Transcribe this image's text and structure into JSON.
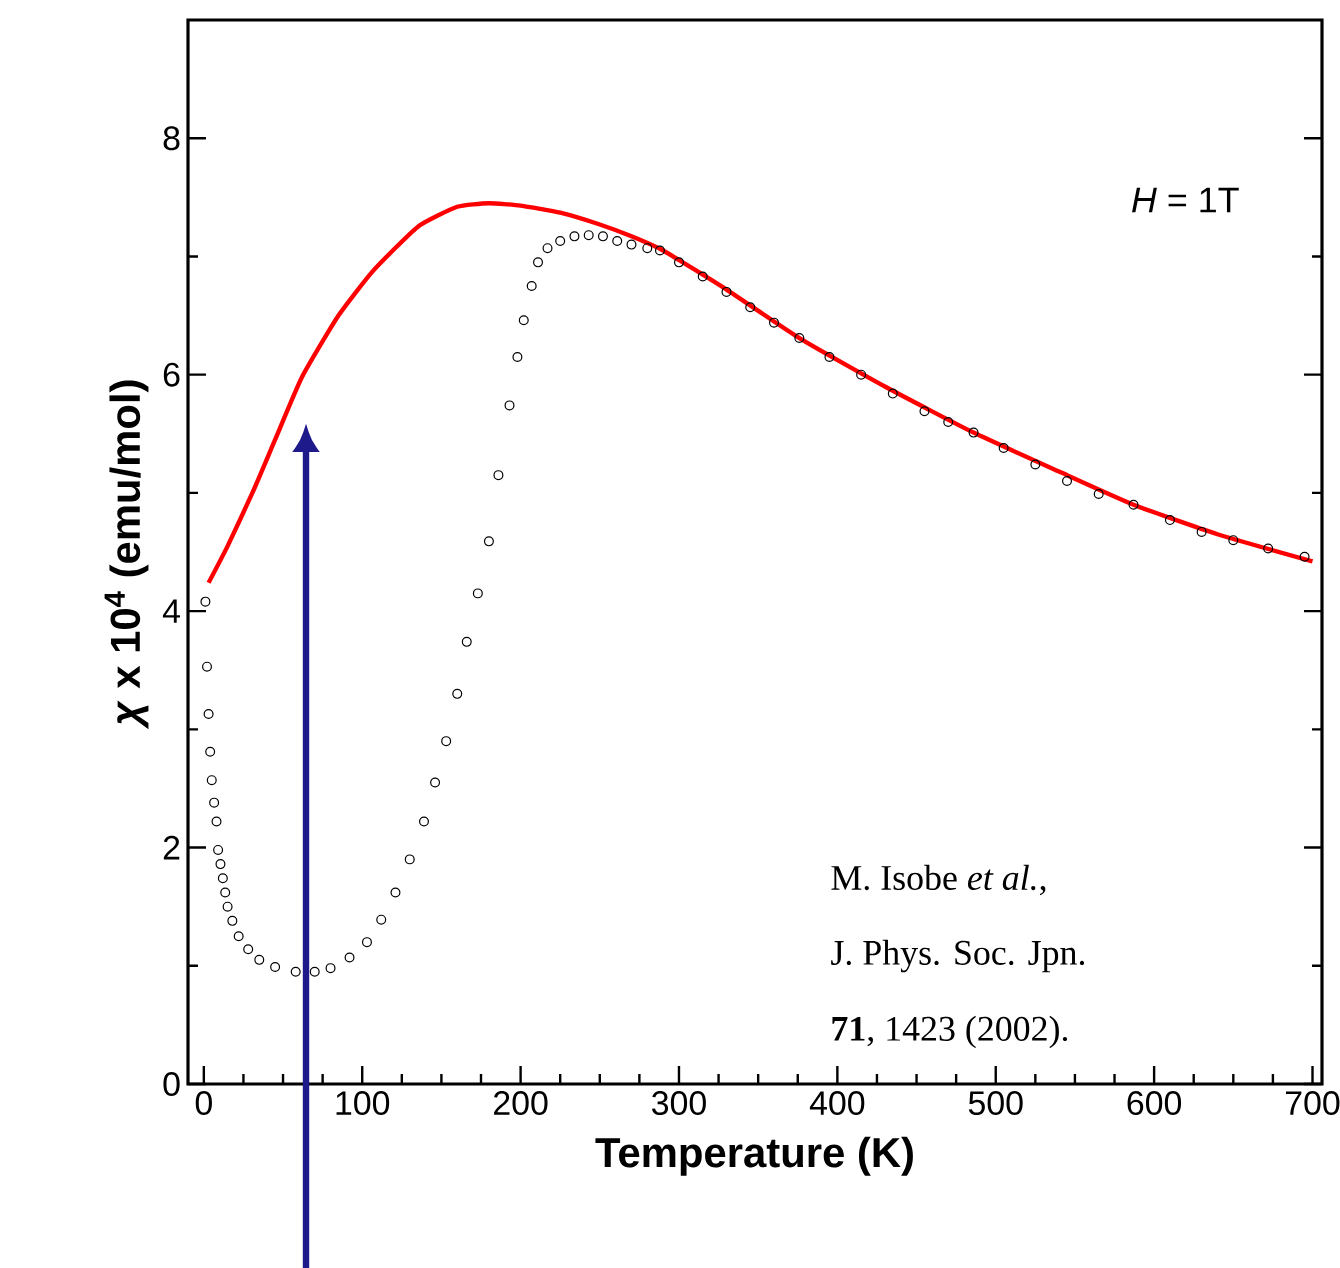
{
  "chart_data": {
    "type": "scatter",
    "xlabel": "Temperature (K)",
    "ylabel": "*χ* x 10$^{4}$ (emu/mol)",
    "xlim": [
      -10,
      706
    ],
    "ylim": [
      0,
      9
    ],
    "xticks": [
      0,
      100,
      200,
      300,
      400,
      500,
      600,
      700
    ],
    "yticks": [
      0,
      2,
      4,
      6,
      8
    ],
    "series": [
      {
        "color": "#000000",
        "marker": "circle",
        "x": [
          1,
          2,
          3,
          4,
          5,
          6.5,
          8,
          9,
          10.5,
          12,
          13.5,
          15,
          18,
          22,
          28,
          35,
          45,
          58,
          70,
          80,
          92,
          103,
          112,
          121,
          130,
          139,
          146,
          153,
          160,
          166,
          173,
          180,
          186,
          193,
          198,
          202,
          207,
          211,
          217,
          225,
          234,
          243,
          252,
          261,
          270,
          280,
          288,
          300,
          315,
          330,
          345,
          360,
          376,
          395,
          415,
          435,
          455,
          470,
          486,
          505,
          525,
          545,
          565,
          587,
          610,
          630,
          650,
          672,
          695
        ],
        "values": [
          4.08,
          3.53,
          3.13,
          2.81,
          2.57,
          2.38,
          2.22,
          1.98,
          1.86,
          1.74,
          1.62,
          1.5,
          1.38,
          1.25,
          1.14,
          1.05,
          0.99,
          0.95,
          0.95,
          0.98,
          1.07,
          1.2,
          1.39,
          1.62,
          1.9,
          2.22,
          2.55,
          2.9,
          3.3,
          3.74,
          4.15,
          4.59,
          5.15,
          5.74,
          6.15,
          6.46,
          6.75,
          6.95,
          7.07,
          7.13,
          7.17,
          7.18,
          7.17,
          7.13,
          7.1,
          7.07,
          7.05,
          6.95,
          6.83,
          6.7,
          6.57,
          6.44,
          6.31,
          6.15,
          6.0,
          5.84,
          5.69,
          5.6,
          5.51,
          5.38,
          5.24,
          5.1,
          4.99,
          4.9,
          4.77,
          4.67,
          4.6,
          4.53,
          4.46
        ]
      },
      {
        "type": "line",
        "color": "#ff0000",
        "x": [
          3,
          15,
          31,
          45,
          62,
          85,
          107,
          135,
          160,
          180,
          200,
          225,
          250,
          270,
          290,
          330,
          376,
          430,
          486,
          540,
          587,
          640,
          700
        ],
        "values": [
          4.24,
          4.55,
          5.01,
          5.45,
          5.98,
          6.5,
          6.88,
          7.25,
          7.42,
          7.45,
          7.43,
          7.37,
          7.27,
          7.17,
          7.05,
          6.72,
          6.31,
          5.9,
          5.51,
          5.18,
          4.9,
          4.65,
          4.42
        ]
      }
    ],
    "annotations": [
      "*H* = 1T",
      "M. Isobe *et al.*,",
      "J. Phys. Soc. Jpn.",
      "**71**, 1423 (2002)."
    ]
  }
}
